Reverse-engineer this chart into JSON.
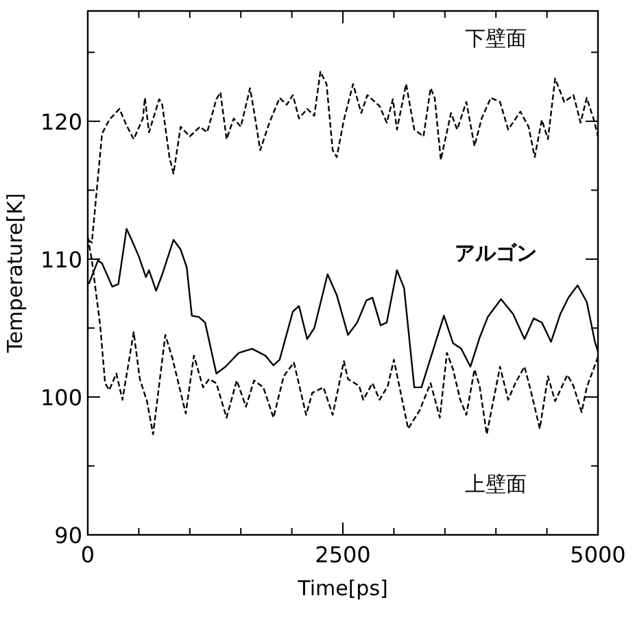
{
  "chart_data": {
    "type": "line",
    "xlabel": "Time[ps]",
    "ylabel": "Temperature[K]",
    "xlim": [
      0,
      5000
    ],
    "ylim": [
      90,
      128
    ],
    "xticks": [
      0,
      {
        "value": 500,
        "label": null
      },
      {
        "value": 1000,
        "label": null
      },
      {
        "value": 1500,
        "label": null
      },
      {
        "value": 2000,
        "label": null
      },
      2500,
      {
        "value": 3000,
        "label": null
      },
      {
        "value": 3500,
        "label": null
      },
      {
        "value": 4000,
        "label": null
      },
      {
        "value": 4500,
        "label": null
      },
      5000
    ],
    "yticks": [
      90,
      {
        "value": 95,
        "label": null
      },
      100,
      {
        "value": 105,
        "label": null
      },
      110,
      {
        "value": 115,
        "label": null
      },
      120,
      {
        "value": 125,
        "label": null
      }
    ],
    "grid": false,
    "marker": "none",
    "annotations": [
      "下壁面",
      "アルゴン",
      "上壁面"
    ],
    "series": [
      {
        "color": "#000000",
        "line_style": "dashed",
        "x": [
          0,
          40,
          140,
          210,
          310,
          380,
          450,
          540,
          560,
          600,
          700,
          730,
          800,
          840,
          910,
          1000,
          1100,
          1170,
          1260,
          1300,
          1360,
          1430,
          1500,
          1590,
          1630,
          1690,
          1780,
          1880,
          1950,
          2010,
          2070,
          2150,
          2220,
          2280,
          2340,
          2400,
          2440,
          2510,
          2600,
          2680,
          2740,
          2860,
          2930,
          2990,
          3030,
          3120,
          3200,
          3290,
          3360,
          3400,
          3460,
          3560,
          3620,
          3710,
          3790,
          3860,
          3950,
          4040,
          4120,
          4240,
          4320,
          4380,
          4450,
          4510,
          4580,
          4670,
          4760,
          4830,
          4890,
          4960,
          5000
        ],
        "values": [
          111.4,
          111.2,
          119.1,
          120.1,
          120.9,
          119.7,
          118.7,
          120.2,
          121.7,
          119.2,
          121.6,
          121.2,
          117.4,
          116.2,
          119.6,
          118.9,
          119.6,
          119.2,
          121.6,
          122.1,
          118.7,
          120.2,
          119.6,
          122.4,
          120.7,
          117.9,
          119.9,
          121.7,
          121.2,
          121.9,
          120.2,
          120.9,
          120.4,
          123.6,
          122.7,
          117.9,
          117.4,
          120.1,
          122.7,
          120.6,
          121.9,
          121.1,
          119.9,
          121.6,
          119.4,
          122.7,
          119.4,
          118.9,
          122.4,
          121.7,
          117.2,
          120.6,
          119.4,
          121.4,
          118.2,
          120.2,
          121.7,
          121.4,
          119.4,
          120.7,
          119.6,
          117.4,
          120.1,
          118.7,
          123.1,
          121.4,
          121.9,
          119.9,
          121.7,
          120.1,
          118.9
        ]
      },
      {
        "color": "#000000",
        "line_style": "solid",
        "x": [
          10,
          100,
          140,
          240,
          300,
          380,
          430,
          500,
          570,
          600,
          670,
          730,
          840,
          910,
          970,
          1020,
          1090,
          1150,
          1260,
          1350,
          1480,
          1610,
          1740,
          1820,
          1880,
          2010,
          2070,
          2150,
          2220,
          2350,
          2440,
          2550,
          2640,
          2730,
          2790,
          2870,
          2930,
          3030,
          3100,
          3200,
          3270,
          3380,
          3490,
          3580,
          3660,
          3750,
          3840,
          3920,
          4050,
          4170,
          4280,
          4370,
          4450,
          4540,
          4630,
          4710,
          4800,
          4890,
          4970,
          5000
        ],
        "values": [
          108.2,
          109.9,
          109.7,
          108.0,
          108.2,
          112.2,
          111.4,
          110.2,
          108.7,
          109.2,
          107.7,
          108.9,
          111.4,
          110.7,
          109.4,
          105.9,
          105.8,
          105.4,
          101.7,
          102.2,
          103.2,
          103.5,
          103.0,
          102.3,
          102.7,
          106.2,
          106.6,
          104.2,
          105.0,
          108.9,
          107.4,
          104.5,
          105.4,
          107.0,
          107.2,
          105.2,
          105.4,
          109.2,
          107.9,
          100.7,
          100.7,
          103.3,
          105.9,
          103.9,
          103.5,
          102.2,
          104.3,
          105.8,
          107.1,
          106.0,
          104.2,
          105.7,
          105.4,
          104.0,
          106.0,
          107.2,
          108.1,
          106.9,
          104.0,
          103.3
        ]
      },
      {
        "color": "#000000",
        "line_style": "dashed",
        "x": [
          0,
          40,
          120,
          170,
          210,
          280,
          340,
          450,
          510,
          580,
          640,
          760,
          830,
          960,
          1040,
          1130,
          1190,
          1260,
          1360,
          1460,
          1550,
          1630,
          1720,
          1820,
          1920,
          2020,
          2140,
          2200,
          2310,
          2400,
          2510,
          2550,
          2660,
          2700,
          2790,
          2860,
          2940,
          3000,
          3140,
          3250,
          3360,
          3450,
          3520,
          3580,
          3650,
          3710,
          3790,
          3840,
          3910,
          3990,
          4040,
          4120,
          4190,
          4280,
          4340,
          4430,
          4510,
          4580,
          4700,
          4760,
          4840,
          4890,
          5000
        ],
        "values": [
          111.6,
          109.9,
          105.3,
          101.0,
          100.5,
          101.7,
          99.8,
          104.7,
          101.3,
          99.7,
          97.3,
          104.5,
          102.8,
          98.8,
          103.0,
          100.7,
          101.3,
          101.0,
          98.5,
          101.2,
          99.3,
          101.2,
          100.7,
          98.5,
          101.5,
          102.5,
          98.7,
          100.3,
          100.7,
          98.7,
          102.6,
          101.3,
          100.8,
          99.8,
          101.0,
          99.8,
          100.8,
          102.7,
          97.7,
          99.0,
          101.0,
          98.5,
          103.2,
          102.0,
          99.8,
          98.7,
          102.0,
          100.8,
          97.3,
          100.3,
          102.2,
          99.8,
          101.0,
          102.2,
          100.5,
          97.7,
          101.5,
          99.7,
          101.6,
          100.8,
          98.9,
          100.7,
          102.9
        ]
      }
    ]
  }
}
